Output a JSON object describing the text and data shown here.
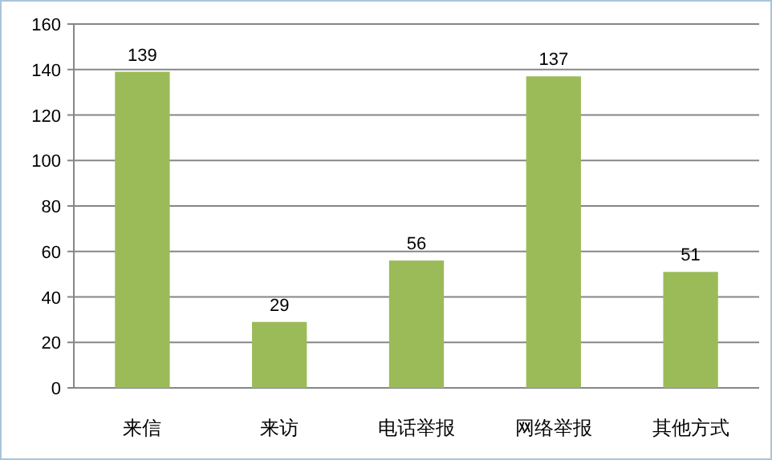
{
  "chart_data": {
    "type": "bar",
    "categories": [
      "来信",
      "来访",
      "电话举报",
      "网络举报",
      "其他方式"
    ],
    "values": [
      139,
      29,
      56,
      137,
      51
    ],
    "color": "#9bbb59",
    "ylim": [
      0,
      160
    ],
    "yticks": [
      0,
      20,
      40,
      60,
      80,
      100,
      120,
      140,
      160
    ],
    "grid": "y",
    "data_labels": true
  }
}
